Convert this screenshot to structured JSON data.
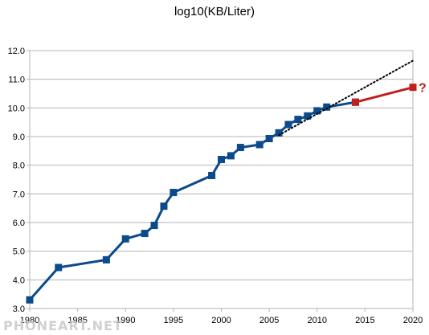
{
  "chart_data": {
    "type": "line",
    "title": "log10(KB/Liter)",
    "xlabel": "",
    "ylabel": "",
    "xlim": [
      1980,
      2020
    ],
    "ylim": [
      3.0,
      12.0
    ],
    "x_ticks": [
      1980,
      1985,
      1990,
      1995,
      2000,
      2005,
      2010,
      2015,
      2020
    ],
    "y_ticks": [
      "3.0",
      "4.0",
      "5.0",
      "6.0",
      "7.0",
      "8.0",
      "9.0",
      "10.0",
      "11.0",
      "12.0"
    ],
    "grid": "horizontal",
    "legend": "none",
    "series": [
      {
        "color": "#0b4a8b",
        "style": "solid",
        "marker": "square",
        "points": [
          [
            1980,
            3.3
          ],
          [
            1983,
            4.43
          ],
          [
            1988,
            4.7
          ],
          [
            1990,
            5.43
          ],
          [
            1992,
            5.62
          ],
          [
            1993,
            5.9
          ],
          [
            1994,
            6.57
          ],
          [
            1995,
            7.05
          ],
          [
            1999,
            7.64
          ],
          [
            2000,
            8.2
          ],
          [
            2001,
            8.33
          ],
          [
            2002,
            8.62
          ],
          [
            2004,
            8.72
          ],
          [
            2005,
            8.93
          ],
          [
            2006,
            9.13
          ],
          [
            2007,
            9.42
          ],
          [
            2008,
            9.6
          ],
          [
            2009,
            9.72
          ],
          [
            2010,
            9.9
          ],
          [
            2011,
            10.03
          ],
          [
            2014,
            10.2
          ]
        ]
      },
      {
        "color": "#c0201c",
        "style": "solid",
        "marker": "square",
        "points": [
          [
            2014,
            10.2
          ],
          [
            2020,
            10.72
          ]
        ]
      },
      {
        "color": "#000000",
        "style": "dotted",
        "marker": "none",
        "points": [
          [
            2006,
            9.05
          ],
          [
            2020,
            11.65
          ]
        ]
      }
    ],
    "annotations": [
      {
        "text": "?",
        "x": 2020,
        "y": 10.72,
        "color": "#c0201c"
      }
    ]
  },
  "watermark_text": "PHONEART.NET"
}
